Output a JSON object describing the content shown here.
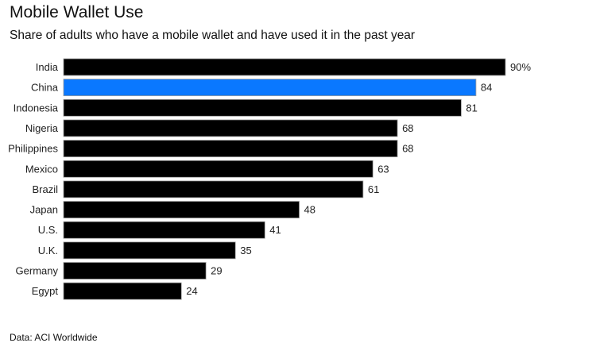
{
  "title": "Mobile Wallet Use",
  "subtitle": "Share of adults who have a mobile wallet and have used it in the past year",
  "source": "Data: ACI Worldwide",
  "colors": {
    "default_bar": "#000000",
    "highlight_bar": "#0A78FF",
    "bar_stroke": "#9a9a9a"
  },
  "chart_data": {
    "type": "bar",
    "orientation": "horizontal",
    "title": "Mobile Wallet Use",
    "subtitle": "Share of adults who have a mobile wallet and have used it in the past year",
    "xlabel": "",
    "ylabel": "",
    "xlim": [
      0,
      90
    ],
    "grid": false,
    "unit_suffix_first": "%",
    "categories": [
      "India",
      "China",
      "Indonesia",
      "Nigeria",
      "Philippines",
      "Mexico",
      "Brazil",
      "Japan",
      "U.S.",
      "U.K.",
      "Germany",
      "Egypt"
    ],
    "values": [
      90,
      84,
      81,
      68,
      68,
      63,
      61,
      48,
      41,
      35,
      29,
      24
    ],
    "value_labels": [
      "90%",
      "84",
      "81",
      "68",
      "68",
      "63",
      "61",
      "48",
      "41",
      "35",
      "29",
      "24"
    ],
    "highlighted": [
      "China"
    ],
    "source": "Data: ACI Worldwide"
  }
}
